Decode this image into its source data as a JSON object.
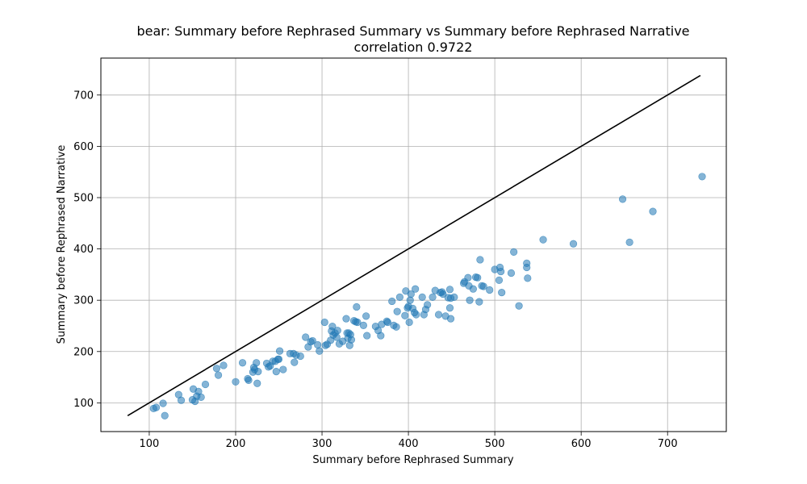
{
  "chart_data": {
    "type": "scatter",
    "title": "bear: Summary before Rephrased Summary vs Summary before Rephrased Narrative",
    "subtitle": "correlation 0.9722",
    "xlabel": "Summary before Rephrased Summary",
    "ylabel": "Summary before Rephrased Narrative",
    "xlim": [
      44,
      768
    ],
    "ylim": [
      44,
      772
    ],
    "xticks": [
      100,
      200,
      300,
      400,
      500,
      600,
      700
    ],
    "yticks": [
      100,
      200,
      300,
      400,
      500,
      600,
      700
    ],
    "grid": true,
    "point_color": "#1f77b4",
    "line_color": "#000000",
    "reference_line": {
      "x": [
        75,
        738
      ],
      "y": [
        75,
        738
      ]
    },
    "points": [
      [
        105,
        89
      ],
      [
        108,
        91
      ],
      [
        116,
        99
      ],
      [
        118,
        75
      ],
      [
        134,
        116
      ],
      [
        137,
        105
      ],
      [
        150,
        106
      ],
      [
        151,
        127
      ],
      [
        153,
        103
      ],
      [
        155,
        113
      ],
      [
        157,
        122
      ],
      [
        160,
        111
      ],
      [
        165,
        136
      ],
      [
        178,
        167
      ],
      [
        180,
        154
      ],
      [
        186,
        173
      ],
      [
        200,
        141
      ],
      [
        208,
        178
      ],
      [
        214,
        147
      ],
      [
        215,
        144
      ],
      [
        220,
        160
      ],
      [
        221,
        169
      ],
      [
        222,
        165
      ],
      [
        224,
        178
      ],
      [
        225,
        138
      ],
      [
        226,
        161
      ],
      [
        236,
        177
      ],
      [
        238,
        170
      ],
      [
        240,
        172
      ],
      [
        243,
        181
      ],
      [
        246,
        181
      ],
      [
        247,
        161
      ],
      [
        249,
        185
      ],
      [
        250,
        185
      ],
      [
        251,
        201
      ],
      [
        255,
        165
      ],
      [
        263,
        196
      ],
      [
        267,
        196
      ],
      [
        268,
        179
      ],
      [
        270,
        193
      ],
      [
        275,
        191
      ],
      [
        281,
        228
      ],
      [
        284,
        209
      ],
      [
        287,
        219
      ],
      [
        289,
        221
      ],
      [
        295,
        213
      ],
      [
        297,
        201
      ],
      [
        303,
        257
      ],
      [
        304,
        212
      ],
      [
        306,
        214
      ],
      [
        310,
        222
      ],
      [
        311,
        240
      ],
      [
        312,
        249
      ],
      [
        313,
        232
      ],
      [
        315,
        236
      ],
      [
        317,
        228
      ],
      [
        318,
        241
      ],
      [
        320,
        215
      ],
      [
        324,
        220
      ],
      [
        328,
        264
      ],
      [
        329,
        236
      ],
      [
        330,
        226
      ],
      [
        331,
        236
      ],
      [
        332,
        212
      ],
      [
        333,
        233
      ],
      [
        334,
        223
      ],
      [
        337,
        260
      ],
      [
        339,
        258
      ],
      [
        340,
        287
      ],
      [
        341,
        257
      ],
      [
        348,
        251
      ],
      [
        351,
        269
      ],
      [
        352,
        231
      ],
      [
        362,
        249
      ],
      [
        365,
        241
      ],
      [
        368,
        231
      ],
      [
        369,
        253
      ],
      [
        375,
        259
      ],
      [
        376,
        257
      ],
      [
        381,
        298
      ],
      [
        383,
        251
      ],
      [
        386,
        248
      ],
      [
        387,
        278
      ],
      [
        390,
        306
      ],
      [
        396,
        270
      ],
      [
        397,
        318
      ],
      [
        399,
        285
      ],
      [
        400,
        288
      ],
      [
        401,
        257
      ],
      [
        402,
        300
      ],
      [
        403,
        312
      ],
      [
        405,
        284
      ],
      [
        407,
        276
      ],
      [
        408,
        322
      ],
      [
        409,
        272
      ],
      [
        416,
        306
      ],
      [
        418,
        272
      ],
      [
        420,
        282
      ],
      [
        422,
        291
      ],
      [
        428,
        306
      ],
      [
        431,
        319
      ],
      [
        435,
        272
      ],
      [
        437,
        315
      ],
      [
        439,
        316
      ],
      [
        440,
        312
      ],
      [
        443,
        269
      ],
      [
        446,
        305
      ],
      [
        448,
        321
      ],
      [
        448,
        285
      ],
      [
        449,
        264
      ],
      [
        449,
        304
      ],
      [
        453,
        306
      ],
      [
        464,
        333
      ],
      [
        465,
        336
      ],
      [
        469,
        344
      ],
      [
        470,
        328
      ],
      [
        471,
        300
      ],
      [
        475,
        322
      ],
      [
        478,
        345
      ],
      [
        480,
        344
      ],
      [
        482,
        297
      ],
      [
        483,
        379
      ],
      [
        485,
        328
      ],
      [
        487,
        327
      ],
      [
        494,
        320
      ],
      [
        500,
        360
      ],
      [
        505,
        339
      ],
      [
        506,
        364
      ],
      [
        507,
        356
      ],
      [
        508,
        315
      ],
      [
        519,
        353
      ],
      [
        522,
        394
      ],
      [
        528,
        289
      ],
      [
        537,
        372
      ],
      [
        537,
        364
      ],
      [
        538,
        343
      ],
      [
        556,
        418
      ],
      [
        591,
        410
      ],
      [
        648,
        497
      ],
      [
        656,
        413
      ],
      [
        683,
        473
      ],
      [
        740,
        541
      ]
    ]
  }
}
